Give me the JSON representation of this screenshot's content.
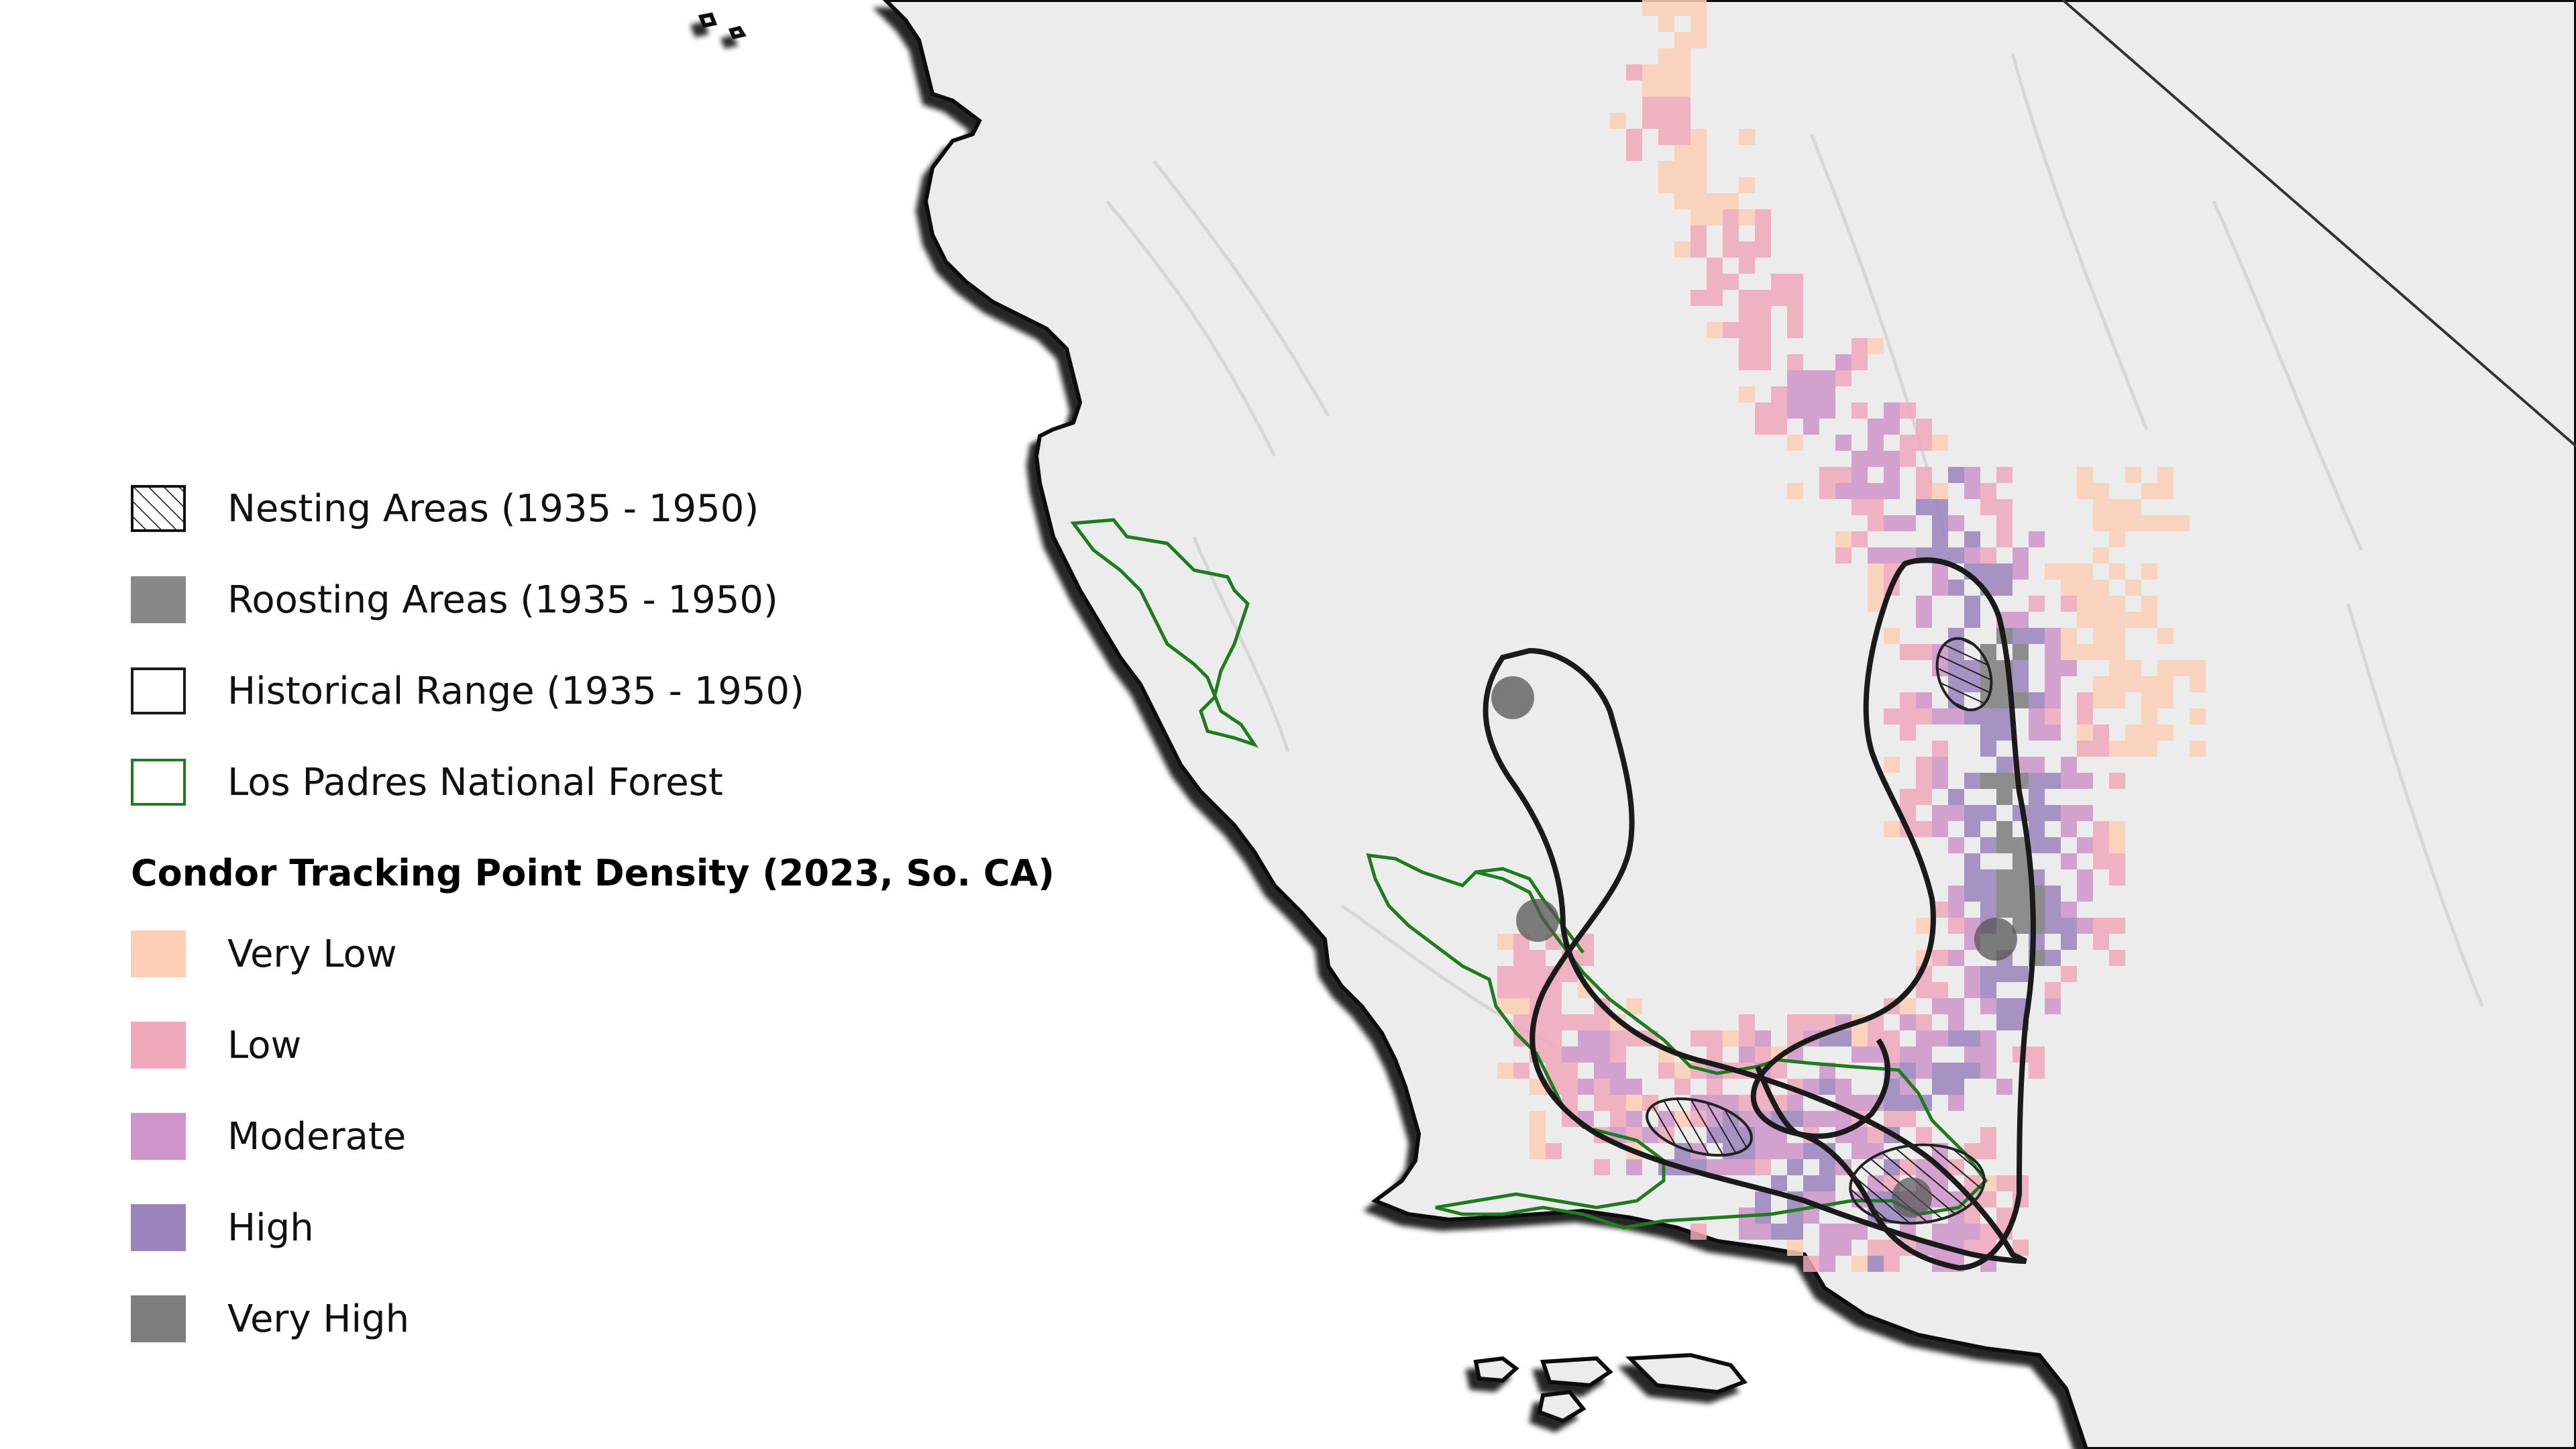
{
  "map": {
    "colors": {
      "background_sea": "#ffffff",
      "land": "#ececec",
      "coast_shadow": "#000000",
      "historical_range_stroke": "#1a1a1a",
      "forest_stroke": "#1e7b1e"
    }
  },
  "legend": {
    "reference_items": [
      {
        "label": "Nesting Areas (1935 - 1950)",
        "swatch": "hatch",
        "icon": "hatched-square-icon"
      },
      {
        "label": "Roosting Areas (1935 - 1950)",
        "swatch": "fill",
        "color": "#888888",
        "icon": "gray-square-icon"
      },
      {
        "label": "Historical Range (1935 - 1950)",
        "swatch": "outline",
        "color": "#1a1a1a",
        "icon": "black-outline-square-icon"
      },
      {
        "label": "Los Padres National Forest",
        "swatch": "outline",
        "color": "#1e7b1e",
        "icon": "green-outline-square-icon"
      }
    ],
    "density_title": "Condor Tracking Point Density (2023, So. CA)",
    "density_classes": [
      {
        "label": "Very Low",
        "color": "#fdcfb6"
      },
      {
        "label": "Low",
        "color": "#f0a8bc"
      },
      {
        "label": "Moderate",
        "color": "#cf94c9"
      },
      {
        "label": "High",
        "color": "#9b83bd"
      },
      {
        "label": "Very High",
        "color": "#7d7d7d"
      }
    ]
  }
}
